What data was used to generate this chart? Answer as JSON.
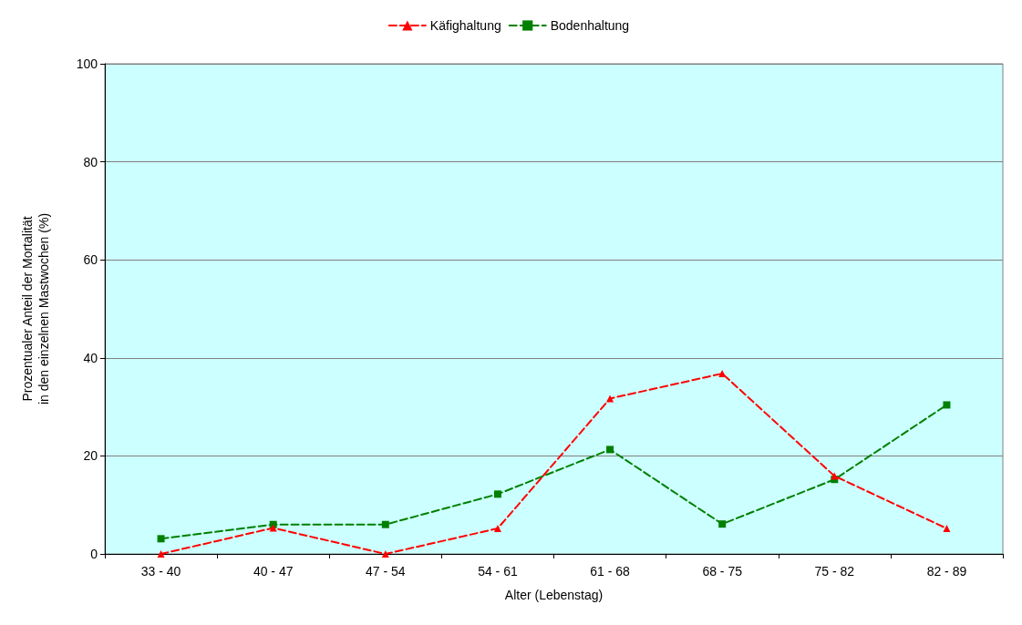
{
  "chart_data": {
    "type": "line",
    "xlabel": "Alter (Lebenstag)",
    "ylabel": "Prozentualer Anteil der Mortalität\nin den einzelnen Mastwochen (%)",
    "categories": [
      "33 - 40",
      "40 - 47",
      "47 - 54",
      "54 - 61",
      "61 - 68",
      "68 - 75",
      "75 - 82",
      "82 - 89"
    ],
    "series": [
      {
        "name": "Käfighaltung",
        "color": "#ff0000",
        "marker": "triangle",
        "values": [
          0,
          5.3,
          0,
          5.2,
          31.7,
          36.8,
          15.9,
          5.2
        ]
      },
      {
        "name": "Bodenhaltung",
        "color": "#008000",
        "marker": "square",
        "values": [
          3.1,
          6,
          6,
          12.2,
          21.3,
          6.1,
          15.2,
          30.4
        ]
      }
    ],
    "ylim": [
      0,
      100
    ],
    "yticks": [
      0,
      20,
      40,
      60,
      80,
      100
    ],
    "grid": "y",
    "legend": "top",
    "line_style": "dashed"
  }
}
